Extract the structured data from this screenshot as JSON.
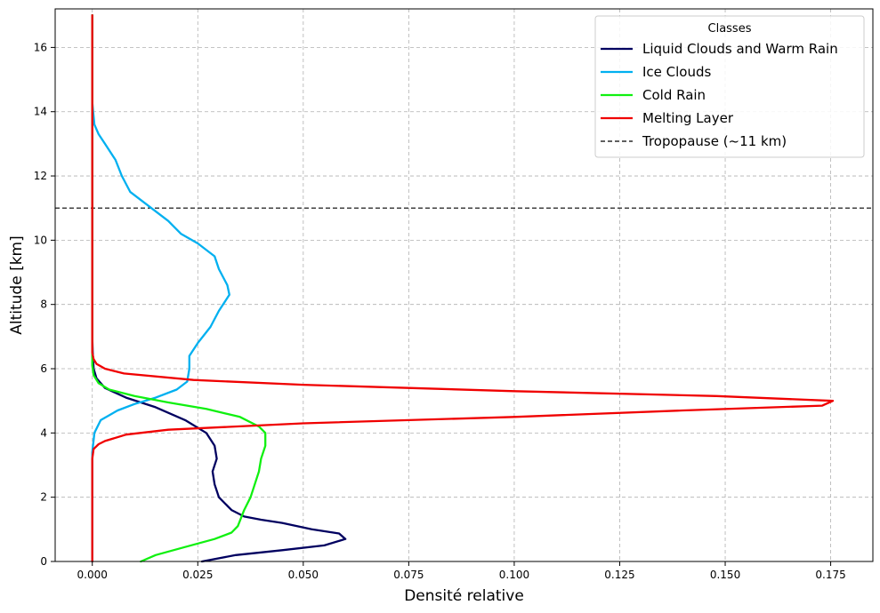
{
  "chart_data": {
    "type": "line",
    "title": "",
    "xlabel": "Densité relative",
    "ylabel": "Altitude [km]",
    "xlim": [
      -0.0088,
      0.185
    ],
    "ylim": [
      0,
      17.2
    ],
    "xticks": [
      0.0,
      0.025,
      0.05,
      0.075,
      0.1,
      0.125,
      0.15,
      0.175
    ],
    "xtick_labels": [
      "0.000",
      "0.025",
      "0.050",
      "0.075",
      "0.100",
      "0.125",
      "0.150",
      "0.175"
    ],
    "yticks": [
      0,
      2,
      4,
      6,
      8,
      10,
      12,
      14,
      16
    ],
    "ytick_labels": [
      "0",
      "2",
      "4",
      "6",
      "8",
      "10",
      "12",
      "14",
      "16"
    ],
    "grid": true,
    "legend": {
      "title": "Classes",
      "placement": "top-right"
    },
    "series": [
      {
        "name": "Liquid Clouds and Warm Rain",
        "color": "#000060",
        "points": [
          [
            0.026,
            0
          ],
          [
            0.034,
            0.2
          ],
          [
            0.045,
            0.35
          ],
          [
            0.055,
            0.5
          ],
          [
            0.06,
            0.7
          ],
          [
            0.0585,
            0.87
          ],
          [
            0.052,
            1.0
          ],
          [
            0.045,
            1.2
          ],
          [
            0.04,
            1.3
          ],
          [
            0.036,
            1.4
          ],
          [
            0.033,
            1.6
          ],
          [
            0.03,
            2.0
          ],
          [
            0.029,
            2.4
          ],
          [
            0.0285,
            2.8
          ],
          [
            0.0295,
            3.2
          ],
          [
            0.029,
            3.6
          ],
          [
            0.027,
            4.0
          ],
          [
            0.022,
            4.4
          ],
          [
            0.015,
            4.8
          ],
          [
            0.008,
            5.1
          ],
          [
            0.003,
            5.4
          ],
          [
            0.001,
            5.7
          ],
          [
            0.0003,
            6.0
          ],
          [
            0.0001,
            6.5
          ],
          [
            0,
            7
          ],
          [
            0,
            17
          ]
        ]
      },
      {
        "name": "Ice Clouds",
        "color": "#00b0f0",
        "points": [
          [
            0,
            0
          ],
          [
            0,
            3.4
          ],
          [
            0.0005,
            4.0
          ],
          [
            0.002,
            4.4
          ],
          [
            0.006,
            4.7
          ],
          [
            0.01,
            4.9
          ],
          [
            0.015,
            5.1
          ],
          [
            0.02,
            5.35
          ],
          [
            0.0225,
            5.6
          ],
          [
            0.023,
            6.0
          ],
          [
            0.023,
            6.4
          ],
          [
            0.025,
            6.8
          ],
          [
            0.028,
            7.3
          ],
          [
            0.03,
            7.8
          ],
          [
            0.0325,
            8.3
          ],
          [
            0.032,
            8.6
          ],
          [
            0.03,
            9.1
          ],
          [
            0.029,
            9.5
          ],
          [
            0.025,
            9.9
          ],
          [
            0.021,
            10.2
          ],
          [
            0.018,
            10.6
          ],
          [
            0.014,
            11.0
          ],
          [
            0.009,
            11.5
          ],
          [
            0.007,
            12.0
          ],
          [
            0.0055,
            12.5
          ],
          [
            0.003,
            13.0
          ],
          [
            0.0015,
            13.3
          ],
          [
            0.0005,
            13.6
          ],
          [
            0.0002,
            14.0
          ],
          [
            0,
            14.3
          ],
          [
            0,
            17
          ]
        ]
      },
      {
        "name": "Cold Rain",
        "color": "#10f010",
        "points": [
          [
            0.0115,
            0
          ],
          [
            0.015,
            0.2
          ],
          [
            0.022,
            0.45
          ],
          [
            0.029,
            0.7
          ],
          [
            0.033,
            0.9
          ],
          [
            0.0345,
            1.1
          ],
          [
            0.036,
            1.6
          ],
          [
            0.0375,
            2.0
          ],
          [
            0.0385,
            2.4
          ],
          [
            0.0395,
            2.8
          ],
          [
            0.04,
            3.2
          ],
          [
            0.041,
            3.6
          ],
          [
            0.041,
            4.0
          ],
          [
            0.0395,
            4.2
          ],
          [
            0.035,
            4.5
          ],
          [
            0.027,
            4.75
          ],
          [
            0.018,
            4.95
          ],
          [
            0.01,
            5.15
          ],
          [
            0.004,
            5.35
          ],
          [
            0.0015,
            5.55
          ],
          [
            0.0003,
            5.8
          ],
          [
            0,
            6.1
          ],
          [
            0,
            17
          ]
        ]
      },
      {
        "name": "Melting Layer",
        "color": "#f00000",
        "points": [
          [
            0,
            0
          ],
          [
            0,
            3.2
          ],
          [
            0.0003,
            3.5
          ],
          [
            0.0015,
            3.65
          ],
          [
            0.003,
            3.75
          ],
          [
            0.008,
            3.95
          ],
          [
            0.018,
            4.1
          ],
          [
            0.05,
            4.3
          ],
          [
            0.1,
            4.5
          ],
          [
            0.14,
            4.7
          ],
          [
            0.173,
            4.85
          ],
          [
            0.1755,
            5.0
          ],
          [
            0.148,
            5.15
          ],
          [
            0.1,
            5.3
          ],
          [
            0.05,
            5.5
          ],
          [
            0.024,
            5.65
          ],
          [
            0.0075,
            5.85
          ],
          [
            0.003,
            6.0
          ],
          [
            0.001,
            6.15
          ],
          [
            0.0003,
            6.3
          ],
          [
            0,
            6.5
          ],
          [
            0,
            17
          ]
        ]
      }
    ],
    "reference_line": {
      "name": "Tropopause (~11 km)",
      "y": 11,
      "color": "#000000",
      "style": "dashed"
    }
  }
}
